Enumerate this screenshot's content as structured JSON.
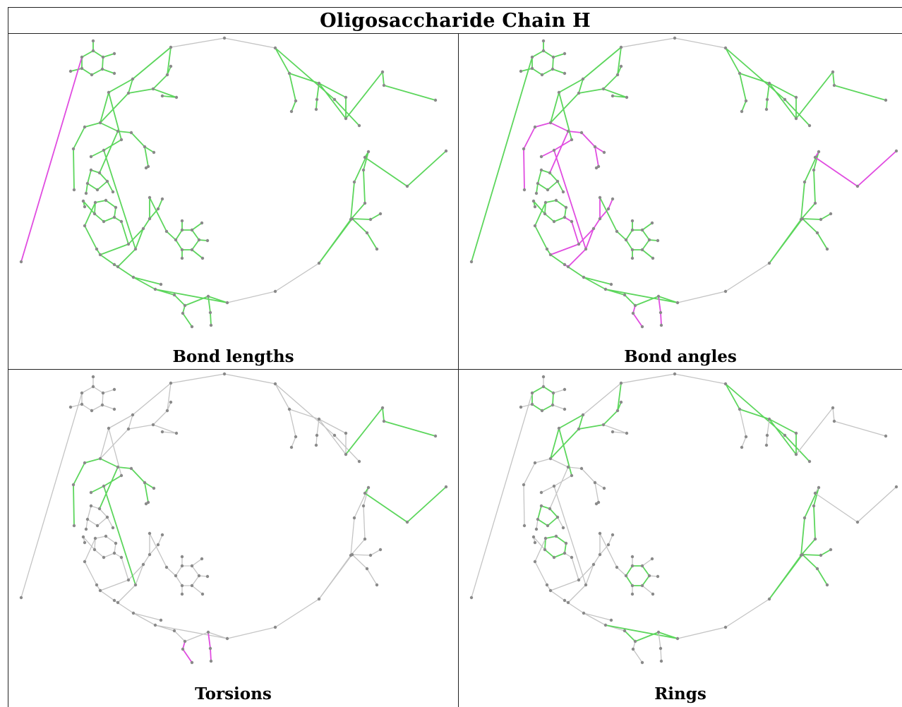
{
  "title": "Oligosaccharide Chain H",
  "colors": {
    "neutral": "#c4c4c4",
    "ok": "#5cd65c",
    "outlier": "#e04ce0",
    "atom": "#8a8a8a"
  },
  "panels": [
    {
      "caption": "Bond lengths",
      "mode": "lengths"
    },
    {
      "caption": "Bond angles",
      "mode": "angles"
    },
    {
      "caption": "Torsions",
      "mode": "torsions"
    },
    {
      "caption": "Rings",
      "mode": "rings"
    }
  ]
}
